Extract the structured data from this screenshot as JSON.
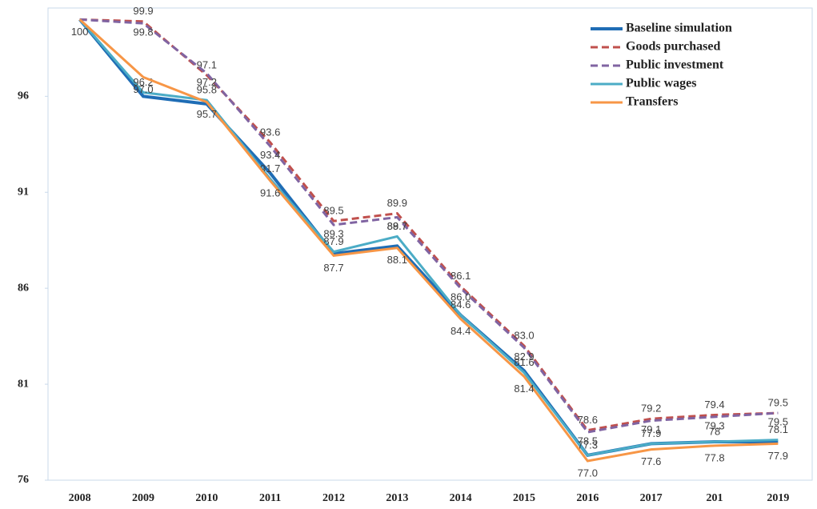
{
  "chart_data": {
    "type": "line",
    "categories": [
      "2008",
      "2009",
      "2010",
      "2011",
      "2012",
      "2013",
      "2014",
      "2015",
      "2016",
      "2017",
      "201",
      "2019"
    ],
    "ylim": [
      76,
      100.6
    ],
    "yticks": [
      76,
      81,
      86,
      91,
      96
    ],
    "legend": "top-right",
    "series": [
      {
        "name": "Baseline simulation",
        "color": "#1f6db5",
        "dash": "solid",
        "values": [
          100,
          96.0,
          95.6,
          92.0,
          87.8,
          88.2,
          84.6,
          81.7,
          77.3,
          77.9,
          78.0,
          78.0
        ]
      },
      {
        "name": "Goods purchased",
        "color": "#c0504d",
        "dash": "dashed",
        "values": [
          100,
          99.9,
          97.1,
          93.6,
          89.5,
          89.9,
          86.1,
          83.0,
          78.6,
          79.2,
          79.4,
          79.5
        ],
        "value_labels": [
          null,
          "99.9",
          "97.1",
          "93.6",
          "89.5",
          "89.9",
          "86.1",
          "83.0",
          "78.6",
          "79.2",
          "79.4",
          "79.5"
        ]
      },
      {
        "name": "Public investment",
        "color": "#8064a2",
        "dash": "dashed",
        "values": [
          100,
          99.8,
          97.2,
          93.4,
          89.3,
          89.7,
          86.0,
          82.9,
          78.5,
          79.1,
          79.3,
          79.5
        ],
        "value_labels": [
          null,
          "99.8",
          "97.2",
          "93.4",
          "89.3",
          "89.7",
          "86.0",
          "82.9",
          "78.5",
          "79.1",
          "79.3",
          "79.5"
        ]
      },
      {
        "name": "Public wages",
        "color": "#4bacc6",
        "dash": "solid",
        "values": [
          100,
          96.2,
          95.8,
          91.7,
          87.9,
          88.7,
          84.6,
          81.6,
          77.3,
          77.9,
          78,
          78.1
        ],
        "value_labels": [
          null,
          "96.2",
          "95.8",
          "91.7",
          "87.9",
          "88.7",
          "84.6",
          "81.6",
          "77.3",
          "77.9",
          "78",
          "78.1"
        ]
      },
      {
        "name": "Transfers",
        "color": "#f79646",
        "dash": "solid",
        "values": [
          100,
          97.0,
          95.7,
          91.6,
          87.7,
          88.1,
          84.4,
          81.4,
          77.0,
          77.6,
          77.8,
          77.9
        ],
        "value_labels": [
          "100",
          "97.0",
          "95.7",
          "91.6",
          "87.7",
          "88.1",
          "84.4",
          "81.4",
          "77.0",
          "77.6",
          "77.8",
          "77.9"
        ]
      }
    ]
  }
}
